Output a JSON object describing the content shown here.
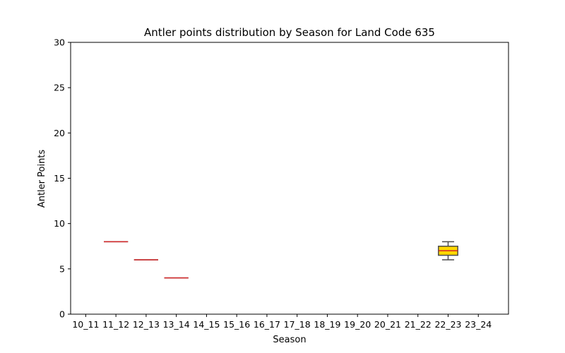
{
  "chart_data": {
    "type": "boxplot",
    "title": "Antler points distribution by Season for Land Code 635",
    "xlabel": "Season",
    "ylabel": "Antler Points",
    "ylim": [
      0,
      30
    ],
    "yticks": [
      0,
      5,
      10,
      15,
      20,
      25,
      30
    ],
    "categories": [
      "10_11",
      "11_12",
      "12_13",
      "13_14",
      "14_15",
      "15_16",
      "16_17",
      "17_18",
      "18_19",
      "19_20",
      "20_21",
      "21_22",
      "22_23",
      "23_24"
    ],
    "boxes": [
      {
        "category": "11_12",
        "min": 8,
        "q1": 8,
        "median": 8,
        "q3": 8,
        "max": 8
      },
      {
        "category": "12_13",
        "min": 6,
        "q1": 6,
        "median": 6,
        "q3": 6,
        "max": 6
      },
      {
        "category": "13_14",
        "min": 4,
        "q1": 4,
        "median": 4,
        "q3": 4,
        "max": 4
      },
      {
        "category": "22_23",
        "min": 6,
        "q1": 6.5,
        "median": 7,
        "q3": 7.5,
        "max": 8
      }
    ],
    "grid": false,
    "colors": {
      "box_fill": "#FFD700",
      "box_edge": "#4d4d4d",
      "median": "#d62728",
      "whisker": "#4d4d4d"
    }
  }
}
